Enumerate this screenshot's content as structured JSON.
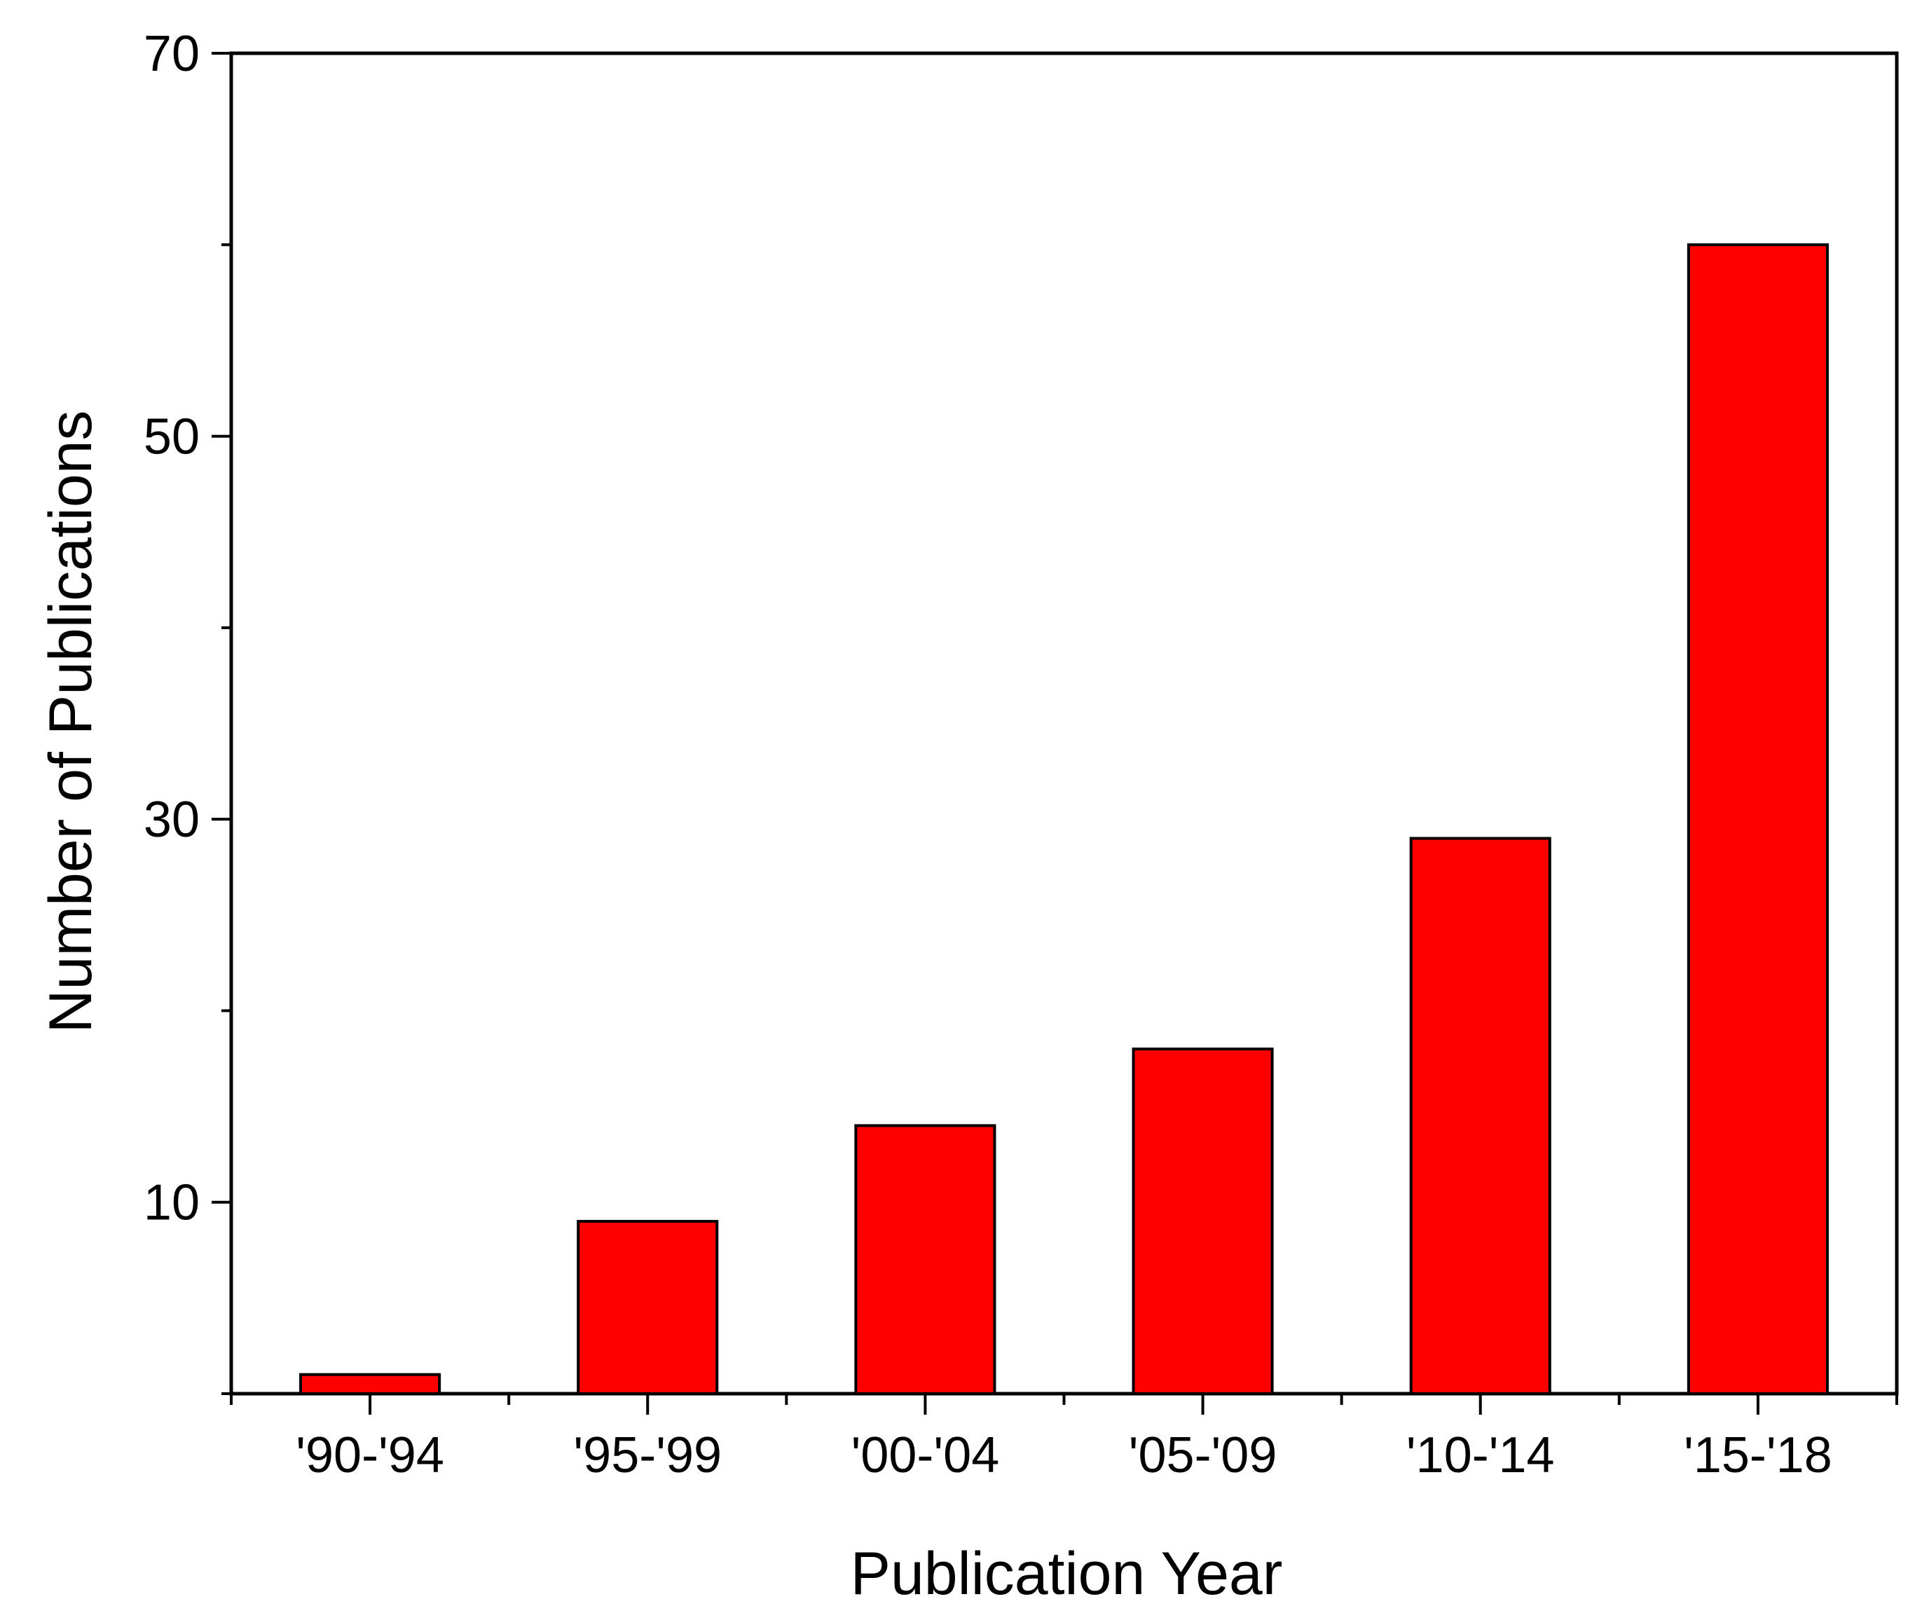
{
  "chart_data": {
    "type": "bar",
    "categories": [
      "'90-'94",
      "'95-'99",
      "'00-'04",
      "'05-'09",
      "'10-'14",
      "'15-'18"
    ],
    "values": [
      1,
      9,
      14,
      18,
      29,
      60
    ],
    "xlabel": "Publication Year",
    "ylabel": "Number of Publications",
    "ylim": [
      0,
      70
    ],
    "yticks": [
      10,
      30,
      50,
      70
    ],
    "grid": false,
    "bar_color": "#ff0000",
    "bar_edge_color": "#000000"
  }
}
